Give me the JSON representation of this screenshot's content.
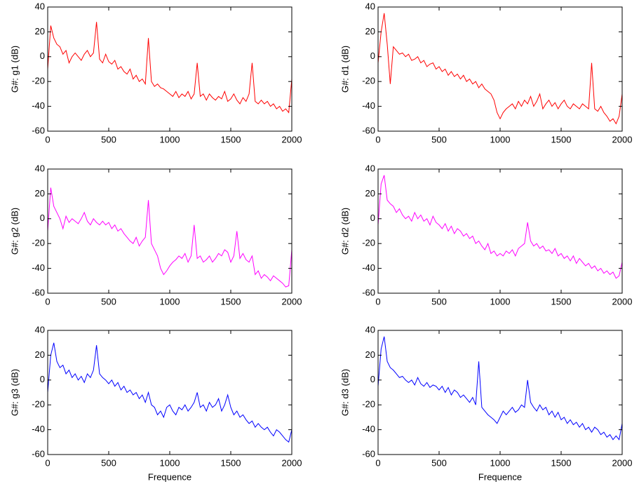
{
  "chart_data": [
    {
      "type": "line",
      "ylabel": "G#: g1 (dB)",
      "x": [
        0,
        25,
        50,
        75,
        100,
        125,
        150,
        175,
        200,
        225,
        250,
        275,
        300,
        325,
        350,
        375,
        400,
        425,
        450,
        475,
        500,
        525,
        550,
        575,
        600,
        625,
        650,
        675,
        700,
        725,
        750,
        775,
        800,
        825,
        850,
        875,
        900,
        925,
        950,
        975,
        1000,
        1025,
        1050,
        1075,
        1100,
        1125,
        1150,
        1175,
        1200,
        1225,
        1250,
        1275,
        1300,
        1325,
        1350,
        1375,
        1400,
        1425,
        1450,
        1475,
        1500,
        1525,
        1550,
        1575,
        1600,
        1625,
        1650,
        1675,
        1700,
        1725,
        1750,
        1775,
        1800,
        1825,
        1850,
        1875,
        1900,
        1925,
        1950,
        1975,
        2000
      ],
      "series": [
        {
          "name": "g1",
          "color": "#ff0000",
          "values": [
            -10,
            25,
            15,
            10,
            8,
            2,
            5,
            -5,
            0,
            3,
            0,
            -3,
            2,
            5,
            0,
            3,
            28,
            -2,
            -5,
            2,
            -4,
            -6,
            -3,
            -10,
            -8,
            -12,
            -14,
            -10,
            -18,
            -15,
            -20,
            -18,
            -22,
            15,
            -20,
            -24,
            -22,
            -25,
            -26,
            -28,
            -30,
            -32,
            -28,
            -33,
            -30,
            -32,
            -28,
            -34,
            -30,
            -5,
            -32,
            -30,
            -35,
            -30,
            -33,
            -35,
            -32,
            -34,
            -28,
            -36,
            -34,
            -30,
            -35,
            -38,
            -33,
            -36,
            -30,
            -5,
            -36,
            -38,
            -35,
            -38,
            -36,
            -40,
            -38,
            -42,
            -40,
            -44,
            -42,
            -45,
            -18
          ]
        }
      ],
      "xlim": [
        0,
        2000
      ],
      "ylim": [
        -60,
        40
      ],
      "xticks": [
        0,
        500,
        1000,
        1500,
        2000
      ],
      "yticks": [
        -60,
        -40,
        -20,
        0,
        20,
        40
      ]
    },
    {
      "type": "line",
      "ylabel": "G#: d1 (dB)",
      "x": [
        0,
        25,
        50,
        75,
        100,
        125,
        150,
        175,
        200,
        225,
        250,
        275,
        300,
        325,
        350,
        375,
        400,
        425,
        450,
        475,
        500,
        525,
        550,
        575,
        600,
        625,
        650,
        675,
        700,
        725,
        750,
        775,
        800,
        825,
        850,
        875,
        900,
        925,
        950,
        975,
        1000,
        1025,
        1050,
        1075,
        1100,
        1125,
        1150,
        1175,
        1200,
        1225,
        1250,
        1275,
        1300,
        1325,
        1350,
        1375,
        1400,
        1425,
        1450,
        1475,
        1500,
        1525,
        1550,
        1575,
        1600,
        1625,
        1650,
        1675,
        1700,
        1725,
        1750,
        1775,
        1800,
        1825,
        1850,
        1875,
        1900,
        1925,
        1950,
        1975,
        2000
      ],
      "series": [
        {
          "name": "d1",
          "color": "#ff0000",
          "values": [
            -5,
            20,
            35,
            10,
            -22,
            8,
            5,
            2,
            3,
            0,
            2,
            -3,
            -2,
            0,
            -5,
            -3,
            -8,
            -6,
            -5,
            -10,
            -8,
            -12,
            -10,
            -15,
            -12,
            -16,
            -14,
            -18,
            -15,
            -20,
            -18,
            -22,
            -20,
            -25,
            -22,
            -26,
            -28,
            -30,
            -35,
            -45,
            -50,
            -45,
            -42,
            -40,
            -38,
            -42,
            -36,
            -40,
            -35,
            -38,
            -32,
            -40,
            -36,
            -30,
            -42,
            -38,
            -35,
            -40,
            -37,
            -42,
            -38,
            -35,
            -40,
            -42,
            -38,
            -40,
            -42,
            -38,
            -40,
            -42,
            -5,
            -42,
            -44,
            -40,
            -45,
            -48,
            -52,
            -50,
            -54,
            -48,
            -30
          ]
        }
      ],
      "xlim": [
        0,
        2000
      ],
      "ylim": [
        -60,
        40
      ],
      "xticks": [
        0,
        500,
        1000,
        1500,
        2000
      ],
      "yticks": [
        -60,
        -40,
        -20,
        0,
        20,
        40
      ]
    },
    {
      "type": "line",
      "ylabel": "G#: g2 (dB)",
      "x": [
        0,
        25,
        50,
        75,
        100,
        125,
        150,
        175,
        200,
        225,
        250,
        275,
        300,
        325,
        350,
        375,
        400,
        425,
        450,
        475,
        500,
        525,
        550,
        575,
        600,
        625,
        650,
        675,
        700,
        725,
        750,
        775,
        800,
        825,
        850,
        875,
        900,
        925,
        950,
        975,
        1000,
        1025,
        1050,
        1075,
        1100,
        1125,
        1150,
        1175,
        1200,
        1225,
        1250,
        1275,
        1300,
        1325,
        1350,
        1375,
        1400,
        1425,
        1450,
        1475,
        1500,
        1525,
        1550,
        1575,
        1600,
        1625,
        1650,
        1675,
        1700,
        1725,
        1750,
        1775,
        1800,
        1825,
        1850,
        1875,
        1900,
        1925,
        1950,
        1975,
        2000
      ],
      "series": [
        {
          "name": "g2",
          "color": "#ff00ff",
          "values": [
            -10,
            25,
            10,
            5,
            0,
            -8,
            2,
            -3,
            0,
            -2,
            -4,
            0,
            5,
            -2,
            -5,
            0,
            -3,
            -5,
            -2,
            -5,
            -3,
            -8,
            -5,
            -10,
            -8,
            -12,
            -15,
            -18,
            -20,
            -15,
            -22,
            -18,
            -15,
            15,
            -20,
            -25,
            -30,
            -40,
            -45,
            -42,
            -38,
            -35,
            -33,
            -30,
            -32,
            -28,
            -35,
            -30,
            -5,
            -32,
            -30,
            -35,
            -33,
            -30,
            -35,
            -32,
            -28,
            -30,
            -25,
            -27,
            -35,
            -30,
            -10,
            -32,
            -28,
            -33,
            -35,
            -30,
            -45,
            -42,
            -48,
            -45,
            -47,
            -50,
            -46,
            -48,
            -50,
            -52,
            -55,
            -54,
            -25
          ]
        }
      ],
      "xlim": [
        0,
        2000
      ],
      "ylim": [
        -60,
        40
      ],
      "xticks": [
        0,
        500,
        1000,
        1500,
        2000
      ],
      "yticks": [
        -60,
        -40,
        -20,
        0,
        20,
        40
      ]
    },
    {
      "type": "line",
      "ylabel": "G#: d2 (dB)",
      "x": [
        0,
        25,
        50,
        75,
        100,
        125,
        150,
        175,
        200,
        225,
        250,
        275,
        300,
        325,
        350,
        375,
        400,
        425,
        450,
        475,
        500,
        525,
        550,
        575,
        600,
        625,
        650,
        675,
        700,
        725,
        750,
        775,
        800,
        825,
        850,
        875,
        900,
        925,
        950,
        975,
        1000,
        1025,
        1050,
        1075,
        1100,
        1125,
        1150,
        1175,
        1200,
        1225,
        1250,
        1275,
        1300,
        1325,
        1350,
        1375,
        1400,
        1425,
        1450,
        1475,
        1500,
        1525,
        1550,
        1575,
        1600,
        1625,
        1650,
        1675,
        1700,
        1725,
        1750,
        1775,
        1800,
        1825,
        1850,
        1875,
        1900,
        1925,
        1950,
        1975,
        2000
      ],
      "series": [
        {
          "name": "d2",
          "color": "#ff00ff",
          "values": [
            -5,
            28,
            35,
            15,
            12,
            10,
            5,
            8,
            3,
            0,
            2,
            -2,
            5,
            0,
            3,
            -2,
            0,
            -5,
            2,
            -3,
            -5,
            -8,
            -4,
            -10,
            -6,
            -12,
            -8,
            -10,
            -14,
            -12,
            -16,
            -14,
            -20,
            -18,
            -22,
            -25,
            -20,
            -28,
            -26,
            -30,
            -28,
            -30,
            -26,
            -28,
            -25,
            -30,
            -24,
            -22,
            -20,
            -3,
            -18,
            -22,
            -20,
            -24,
            -22,
            -26,
            -25,
            -28,
            -24,
            -30,
            -28,
            -32,
            -30,
            -34,
            -30,
            -36,
            -32,
            -35,
            -38,
            -36,
            -40,
            -38,
            -42,
            -40,
            -44,
            -42,
            -45,
            -43,
            -48,
            -46,
            -35
          ]
        }
      ],
      "xlim": [
        0,
        2000
      ],
      "ylim": [
        -60,
        40
      ],
      "xticks": [
        0,
        500,
        1000,
        1500,
        2000
      ],
      "yticks": [
        -60,
        -40,
        -20,
        0,
        20,
        40
      ]
    },
    {
      "type": "line",
      "ylabel": "G#: g3 (dB)",
      "xlabel": "Frequence",
      "x": [
        0,
        25,
        50,
        75,
        100,
        125,
        150,
        175,
        200,
        225,
        250,
        275,
        300,
        325,
        350,
        375,
        400,
        425,
        450,
        475,
        500,
        525,
        550,
        575,
        600,
        625,
        650,
        675,
        700,
        725,
        750,
        775,
        800,
        825,
        850,
        875,
        900,
        925,
        950,
        975,
        1000,
        1025,
        1050,
        1075,
        1100,
        1125,
        1150,
        1175,
        1200,
        1225,
        1250,
        1275,
        1300,
        1325,
        1350,
        1375,
        1400,
        1425,
        1450,
        1475,
        1500,
        1525,
        1550,
        1575,
        1600,
        1625,
        1650,
        1675,
        1700,
        1725,
        1750,
        1775,
        1800,
        1825,
        1850,
        1875,
        1900,
        1925,
        1950,
        1975,
        2000
      ],
      "series": [
        {
          "name": "g3",
          "color": "#0000ff",
          "values": [
            -10,
            20,
            30,
            15,
            10,
            12,
            5,
            8,
            2,
            5,
            0,
            3,
            -2,
            5,
            2,
            8,
            28,
            5,
            2,
            0,
            -3,
            0,
            -5,
            -2,
            -8,
            -5,
            -10,
            -8,
            -12,
            -10,
            -15,
            -12,
            -18,
            -10,
            -20,
            -22,
            -28,
            -25,
            -30,
            -22,
            -20,
            -25,
            -28,
            -22,
            -24,
            -20,
            -25,
            -22,
            -18,
            -10,
            -22,
            -20,
            -25,
            -18,
            -22,
            -20,
            -15,
            -25,
            -20,
            -12,
            -22,
            -28,
            -25,
            -30,
            -28,
            -32,
            -35,
            -33,
            -38,
            -35,
            -38,
            -40,
            -38,
            -42,
            -45,
            -40,
            -42,
            -45,
            -48,
            -50,
            -40
          ]
        }
      ],
      "xlim": [
        0,
        2000
      ],
      "ylim": [
        -60,
        40
      ],
      "xticks": [
        0,
        500,
        1000,
        1500,
        2000
      ],
      "yticks": [
        -60,
        -40,
        -20,
        0,
        20,
        40
      ]
    },
    {
      "type": "line",
      "ylabel": "G#: d3 (dB)",
      "xlabel": "Frequence",
      "x": [
        0,
        25,
        50,
        75,
        100,
        125,
        150,
        175,
        200,
        225,
        250,
        275,
        300,
        325,
        350,
        375,
        400,
        425,
        450,
        475,
        500,
        525,
        550,
        575,
        600,
        625,
        650,
        675,
        700,
        725,
        750,
        775,
        800,
        825,
        850,
        875,
        900,
        925,
        950,
        975,
        1000,
        1025,
        1050,
        1075,
        1100,
        1125,
        1150,
        1175,
        1200,
        1225,
        1250,
        1275,
        1300,
        1325,
        1350,
        1375,
        1400,
        1425,
        1450,
        1475,
        1500,
        1525,
        1550,
        1575,
        1600,
        1625,
        1650,
        1675,
        1700,
        1725,
        1750,
        1775,
        1800,
        1825,
        1850,
        1875,
        1900,
        1925,
        1950,
        1975,
        2000
      ],
      "series": [
        {
          "name": "d3",
          "color": "#0000ff",
          "values": [
            -5,
            25,
            35,
            15,
            10,
            8,
            5,
            2,
            3,
            0,
            -2,
            0,
            -4,
            2,
            -3,
            -5,
            -2,
            -6,
            -4,
            -5,
            -8,
            -5,
            -10,
            -6,
            -12,
            -8,
            -10,
            -14,
            -12,
            -15,
            -18,
            -14,
            -20,
            15,
            -22,
            -25,
            -28,
            -30,
            -32,
            -35,
            -30,
            -25,
            -28,
            -25,
            -22,
            -26,
            -24,
            -20,
            -22,
            0,
            -18,
            -22,
            -25,
            -20,
            -24,
            -22,
            -28,
            -25,
            -30,
            -26,
            -32,
            -30,
            -35,
            -32,
            -36,
            -34,
            -38,
            -35,
            -40,
            -38,
            -42,
            -38,
            -40,
            -44,
            -42,
            -46,
            -44,
            -48,
            -45,
            -48,
            -35
          ]
        }
      ],
      "xlim": [
        0,
        2000
      ],
      "ylim": [
        -60,
        40
      ],
      "xticks": [
        0,
        500,
        1000,
        1500,
        2000
      ],
      "yticks": [
        -60,
        -40,
        -20,
        0,
        20,
        40
      ]
    }
  ]
}
